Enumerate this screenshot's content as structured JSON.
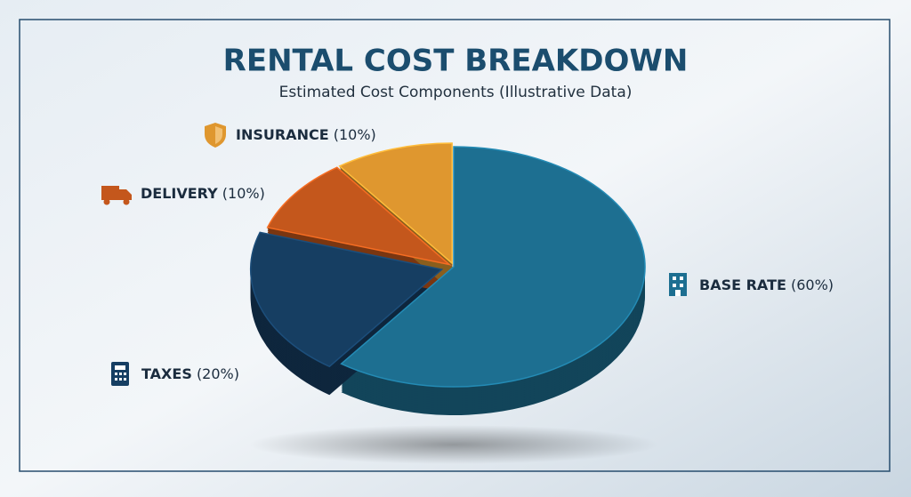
{
  "chart_data": {
    "type": "pie",
    "title": "RENTAL COST BREAKDOWN",
    "subtitle": "Estimated Cost Components (Illustrative Data)",
    "categories": [
      "BASE RATE",
      "TAXES",
      "DELIVERY",
      "INSURANCE"
    ],
    "values": [
      60,
      20,
      10,
      10
    ],
    "value_labels": [
      "(60%)",
      "(20%)",
      "(10%)",
      "(10%)"
    ],
    "colors": [
      "#1d6f91",
      "#163e62",
      "#c4571c",
      "#df972f"
    ]
  }
}
